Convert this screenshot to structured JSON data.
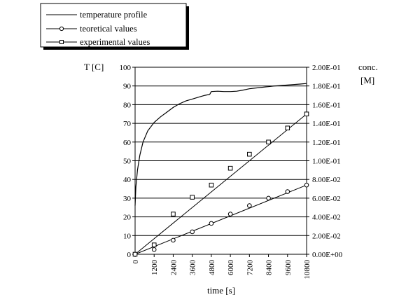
{
  "chart_data": {
    "type": "line",
    "xlabel": "time [s]",
    "ylabel": "T [C]",
    "y2label_line1": "conc.",
    "y2label_line2": "[M]",
    "xlim": [
      0,
      10800
    ],
    "ylim": [
      0,
      100
    ],
    "y2lim": [
      0,
      0.2
    ],
    "x_ticks": [
      "0",
      "1200",
      "2400",
      "3600",
      "4800",
      "6000",
      "7200",
      "8400",
      "9600",
      "10800"
    ],
    "y_ticks": [
      "0",
      "10",
      "20",
      "30",
      "40",
      "50",
      "60",
      "70",
      "80",
      "90",
      "100"
    ],
    "y2_ticks": [
      "0.00E+00",
      "2.00E-02",
      "4.00E-02",
      "6.00E-02",
      "8.00E-02",
      "1.00E-01",
      "1.20E-01",
      "1.40E-01",
      "1.60E-01",
      "1.80E-01",
      "2.00E-01"
    ],
    "grid": true,
    "legend_position": "top-left",
    "series": [
      {
        "name": "temperature profile",
        "axis": "left",
        "marker": "none",
        "x": [
          0,
          50,
          150,
          300,
          500,
          800,
          1200,
          1600,
          2000,
          2400,
          2800,
          3200,
          3600,
          4000,
          4400,
          4700,
          4800,
          5200,
          5600,
          6000,
          6400,
          6800,
          7200,
          8000,
          8800,
          9600,
          10400,
          10800
        ],
        "y": [
          26,
          36,
          45,
          53,
          60,
          66,
          70.5,
          73.5,
          76,
          78.5,
          80.5,
          82,
          83,
          84,
          85,
          85.5,
          87,
          87.2,
          87,
          87,
          87.2,
          87.8,
          88.5,
          89.3,
          90,
          90.5,
          91,
          91.3
        ]
      },
      {
        "name": "teoretical values",
        "axis": "right",
        "marker": "circle",
        "line": "linear",
        "line_x": [
          0,
          10800
        ],
        "line_y": [
          0,
          0.074
        ],
        "x": [
          0,
          1200,
          2400,
          3600,
          4800,
          6000,
          7200,
          8400,
          9600,
          10800
        ],
        "y": [
          0,
          0.005,
          0.015,
          0.024,
          0.033,
          0.043,
          0.052,
          0.06,
          0.067,
          0.074
        ]
      },
      {
        "name": "experimental values",
        "axis": "right",
        "marker": "square",
        "line": "linear",
        "line_x": [
          0,
          10800
        ],
        "line_y": [
          0,
          0.15
        ],
        "x": [
          0,
          1200,
          2400,
          3600,
          4800,
          6000,
          7200,
          8400,
          9600,
          10800
        ],
        "y": [
          0,
          0.01,
          0.043,
          0.061,
          0.074,
          0.092,
          0.107,
          0.12,
          0.135,
          0.15
        ]
      }
    ]
  }
}
